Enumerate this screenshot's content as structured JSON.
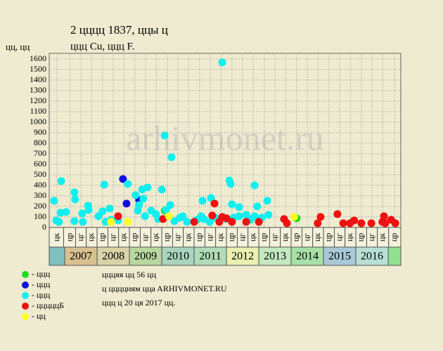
{
  "chart_data": {
    "type": "scatter",
    "title": "2 цццц 1837, ццы ц",
    "subtitle": "ццц Cu, ццц F.",
    "y_label": "цц, цц",
    "watermark": "arhivmonet.ru",
    "grid": true,
    "xlim": [
      2006.52,
      2017.39
    ],
    "ylim": [
      0,
      1600
    ],
    "yticks": [
      0,
      100,
      200,
      300,
      400,
      500,
      600,
      700,
      800,
      900,
      1000,
      1100,
      1200,
      1300,
      1400,
      1500,
      1600
    ],
    "xticks": [
      {
        "value": 2006.76,
        "label": "цк"
      },
      {
        "value": 2007.17,
        "label": "цр"
      },
      {
        "value": 2007.5,
        "label": "цг"
      },
      {
        "value": 2007.83,
        "label": "цк"
      },
      {
        "value": 2008.17,
        "label": "цр"
      },
      {
        "value": 2008.5,
        "label": "цг"
      },
      {
        "value": 2008.83,
        "label": "цк"
      },
      {
        "value": 2009.17,
        "label": "цр"
      },
      {
        "value": 2009.5,
        "label": "цг"
      },
      {
        "value": 2009.83,
        "label": "цк"
      },
      {
        "value": 2010.17,
        "label": "цр"
      },
      {
        "value": 2010.5,
        "label": "цг"
      },
      {
        "value": 2010.83,
        "label": "цк"
      },
      {
        "value": 2011.17,
        "label": "цр"
      },
      {
        "value": 2011.5,
        "label": "цг"
      },
      {
        "value": 2011.83,
        "label": "цк"
      },
      {
        "value": 2012.17,
        "label": "цр"
      },
      {
        "value": 2012.5,
        "label": "цг"
      },
      {
        "value": 2012.83,
        "label": "цк"
      },
      {
        "value": 2013.17,
        "label": "цр"
      },
      {
        "value": 2013.5,
        "label": "цг"
      },
      {
        "value": 2013.83,
        "label": "цк"
      },
      {
        "value": 2014.17,
        "label": "цр"
      },
      {
        "value": 2014.5,
        "label": "цг"
      },
      {
        "value": 2014.83,
        "label": "цк"
      },
      {
        "value": 2015.17,
        "label": "цр"
      },
      {
        "value": 2015.5,
        "label": "цг"
      },
      {
        "value": 2015.83,
        "label": "цк"
      },
      {
        "value": 2016.17,
        "label": "цр"
      },
      {
        "value": 2016.5,
        "label": "цг"
      },
      {
        "value": 2016.83,
        "label": "цк"
      },
      {
        "value": 2017.2,
        "label": "цр"
      }
    ],
    "year_ticks": [
      2007,
      2008,
      2009,
      2010,
      2011,
      2012,
      2013,
      2014,
      2015,
      2016
    ],
    "year_colors": [
      "#d8c090",
      "#d8d4a8",
      "#b8d8a0",
      "#a8d4c0",
      "#b0dcb8",
      "#eaf0b0",
      "#c4e8c0",
      "#a8e0a8",
      "#a8c8d8",
      "#b8e0d4"
    ],
    "lead_color": "#80c0c0",
    "tail_color": "#90e090",
    "series": [
      {
        "name": "- ццц",
        "color": "#22dd22",
        "x": [
          2010.09,
          2014.17
        ],
        "values": [
          160,
          87
        ]
      },
      {
        "name": "- ццц",
        "color": "#1010dd",
        "x": [
          2008.8,
          2008.91,
          2009.3
        ],
        "values": [
          460,
          227,
          260
        ]
      },
      {
        "name": "- ццц",
        "color": "#11eeee",
        "x": [
          2006.67,
          2006.74,
          2006.82,
          2006.87,
          2006.89,
          2007.04,
          2007.3,
          2007.32,
          2007.3,
          2007.54,
          2007.56,
          2007.72,
          2007.74,
          2008.04,
          2008.17,
          2008.22,
          2008.26,
          2008.39,
          2008.43,
          2008.65,
          2008.95,
          2009.19,
          2009.26,
          2009.3,
          2009.39,
          2009.43,
          2009.48,
          2009.56,
          2009.67,
          2009.82,
          2009.89,
          2010.0,
          2010.09,
          2010.13,
          2010.26,
          2010.3,
          2010.39,
          2010.56,
          2010.65,
          2010.78,
          2011.09,
          2011.22,
          2011.26,
          2011.3,
          2011.48,
          2011.52,
          2011.65,
          2011.87,
          2012.0,
          2012.09,
          2012.13,
          2012.17,
          2012.22,
          2012.39,
          2012.39,
          2012.61,
          2012.74,
          2012.87,
          2012.95,
          2013.09,
          2013.26,
          2013.3,
          2012.87
        ],
        "values": [
          253,
          67,
          53,
          140,
          440,
          147,
          333,
          267,
          60,
          133,
          53,
          207,
          167,
          107,
          153,
          407,
          53,
          180,
          73,
          67,
          413,
          307,
          160,
          213,
          360,
          273,
          107,
          380,
          160,
          127,
          80,
          360,
          873,
          167,
          213,
          667,
          60,
          93,
          107,
          53,
          73,
          107,
          253,
          80,
          53,
          280,
          93,
          1567,
          80,
          447,
          413,
          220,
          93,
          193,
          107,
          120,
          73,
          400,
          200,
          93,
          253,
          120,
          107
        ]
      },
      {
        "name": "- цццццБ",
        "color": "#ee1111",
        "x": [
          2008.65,
          2010.04,
          2011.0,
          2011.56,
          2011.63,
          2011.78,
          2011.87,
          2012.0,
          2012.17,
          2012.61,
          2013.0,
          2013.78,
          2013.87,
          2014.82,
          2014.91,
          2015.43,
          2015.61,
          2015.82,
          2015.95,
          2016.17,
          2016.48,
          2016.82,
          2016.87,
          2016.91,
          2017.09,
          2017.22
        ],
        "values": [
          107,
          80,
          53,
          113,
          227,
          53,
          100,
          87,
          53,
          53,
          53,
          80,
          40,
          40,
          100,
          127,
          40,
          40,
          67,
          40,
          40,
          53,
          107,
          40,
          73,
          40
        ]
      },
      {
        "name": "- цц",
        "color": "#ffff22",
        "x": [
          2008.43,
          2008.95,
          2010.22,
          2014.09
        ],
        "values": [
          53,
          53,
          107,
          100
        ]
      }
    ],
    "notes": [
      "цццяя цц 56 цц",
      "ц цццциям ццa ARHIVMONET.RU",
      "ццц ц 20 ця 2017 цц."
    ]
  }
}
